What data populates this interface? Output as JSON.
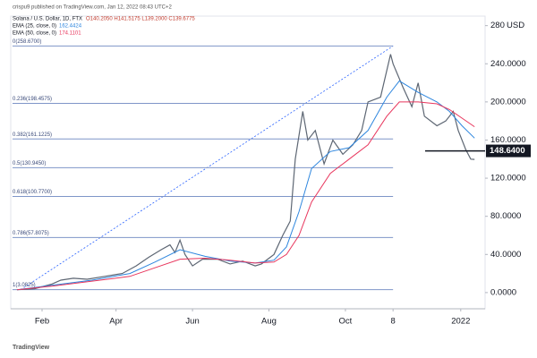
{
  "chart_data": {
    "type": "line",
    "publisher": "crispu9 published on TradingView.com, Jan 12, 2022 08:43 UTC+2",
    "title": "Solana / U.S. Dollar, 1D, FTX",
    "ohlc": "O140.2050 H141.5175 L139.2000 C139.6775",
    "y_unit": "USD",
    "footer": "TradingView",
    "xlim": [
      -5,
      372
    ],
    "ylim": [
      -17,
      290
    ],
    "xticks": [
      {
        "value": 20,
        "label": "Feb"
      },
      {
        "value": 79,
        "label": "Apr"
      },
      {
        "value": 140,
        "label": "Jun"
      },
      {
        "value": 201,
        "label": "Aug"
      },
      {
        "value": 262,
        "label": "Oct"
      },
      {
        "value": 300,
        "label": "8"
      },
      {
        "value": 354,
        "label": "2022"
      }
    ],
    "yticks": [
      {
        "value": 0,
        "label": "0.0000"
      },
      {
        "value": 40,
        "label": "40.0000"
      },
      {
        "value": 80,
        "label": "80.0000"
      },
      {
        "value": 120,
        "label": "120.0000"
      },
      {
        "value": 160,
        "label": "160.0000"
      },
      {
        "value": 200,
        "label": "200.0000"
      },
      {
        "value": 240,
        "label": "240.0000"
      },
      280
    ],
    "series": [
      {
        "name": "Solana / U.S. Dollar, 1D, FTX",
        "color": "#5d6673",
        "x": [
          0,
          14,
          28,
          35,
          45,
          56,
          70,
          84,
          95,
          105,
          115,
          122,
          126,
          130,
          134,
          140,
          148,
          160,
          170,
          180,
          190,
          195,
          205,
          212,
          218,
          222,
          228,
          232,
          238,
          245,
          252,
          260,
          268,
          275,
          280,
          290,
          298,
          300,
          308,
          315,
          320,
          325,
          335,
          342,
          348,
          352,
          358,
          362,
          365
        ],
        "values": [
          3,
          4,
          9,
          13,
          15,
          14,
          17,
          20,
          28,
          37,
          45,
          50,
          42,
          55,
          40,
          28,
          35,
          35,
          30,
          33,
          28,
          30,
          40,
          60,
          75,
          140,
          190,
          160,
          170,
          135,
          160,
          145,
          155,
          170,
          200,
          205,
          250,
          240,
          215,
          195,
          220,
          185,
          175,
          180,
          190,
          170,
          150,
          140,
          139.68
        ]
      },
      {
        "name": "EMA (25, close, 0)",
        "last_value": "162.4424",
        "color": "#2e86de",
        "x": [
          0,
          30,
          60,
          90,
          110,
          130,
          150,
          170,
          190,
          205,
          215,
          225,
          235,
          250,
          265,
          280,
          295,
          305,
          320,
          335,
          345,
          355,
          365
        ],
        "values": [
          3,
          8,
          13,
          20,
          32,
          45,
          38,
          33,
          31,
          34,
          48,
          85,
          130,
          148,
          152,
          170,
          205,
          222,
          210,
          200,
          190,
          175,
          162
        ]
      },
      {
        "name": "EMA (50, close, 0)",
        "last_value": "174.1101",
        "color": "#e8365d",
        "x": [
          0,
          30,
          60,
          90,
          110,
          130,
          150,
          170,
          190,
          205,
          215,
          225,
          235,
          250,
          265,
          280,
          295,
          305,
          320,
          335,
          345,
          355,
          365
        ],
        "values": [
          3,
          7,
          12,
          17,
          26,
          35,
          36,
          34,
          31,
          32,
          40,
          60,
          95,
          125,
          140,
          155,
          185,
          200,
          200,
          198,
          192,
          183,
          174
        ]
      }
    ],
    "fib_levels": [
      {
        "label": "0(258.6700)",
        "value": 258.67
      },
      {
        "label": "0.236(198.4575)",
        "value": 198.4575
      },
      {
        "label": "0.382(161.1225)",
        "value": 161.1225
      },
      {
        "label": "0.5(130.9450)",
        "value": 130.945
      },
      {
        "label": "0.618(100.7700)",
        "value": 100.77
      },
      {
        "label": "0.786(57.8075)",
        "value": 57.8075
      },
      {
        "label": "1(3.0825)",
        "value": 3.0825
      }
    ],
    "fib_color": "#7f96c8",
    "current_price": {
      "value": 148.64,
      "label": "148.6400"
    }
  }
}
